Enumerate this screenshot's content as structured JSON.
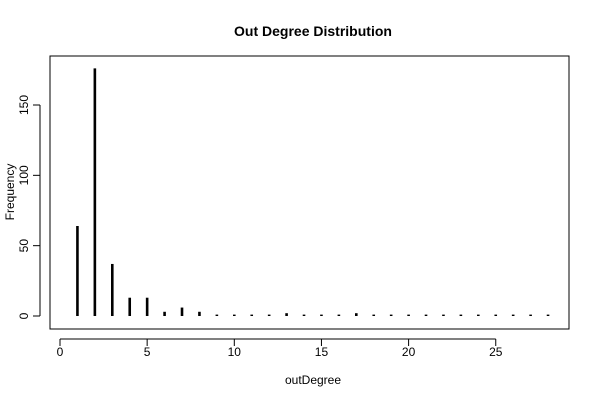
{
  "chart_data": {
    "type": "bar",
    "title": "Out Degree Distribution",
    "xlabel": "outDegree",
    "ylabel": "Frequency",
    "xlim": [
      0,
      29
    ],
    "ylim": [
      0,
      180
    ],
    "x_ticks": [
      0,
      5,
      10,
      15,
      20,
      25
    ],
    "y_ticks": [
      0,
      50,
      100,
      150
    ],
    "grid": false,
    "x": [
      1,
      2,
      3,
      4,
      5,
      6,
      7,
      8,
      9,
      10,
      11,
      12,
      13,
      14,
      15,
      16,
      17,
      18,
      19,
      20,
      21,
      22,
      23,
      24,
      25,
      26,
      27,
      28
    ],
    "values": [
      64,
      176,
      37,
      13,
      13,
      3,
      6,
      3,
      1,
      1,
      1,
      1,
      2,
      1,
      1,
      1,
      2,
      1,
      1,
      1,
      1,
      1,
      1,
      1,
      1,
      1,
      1,
      1
    ]
  }
}
